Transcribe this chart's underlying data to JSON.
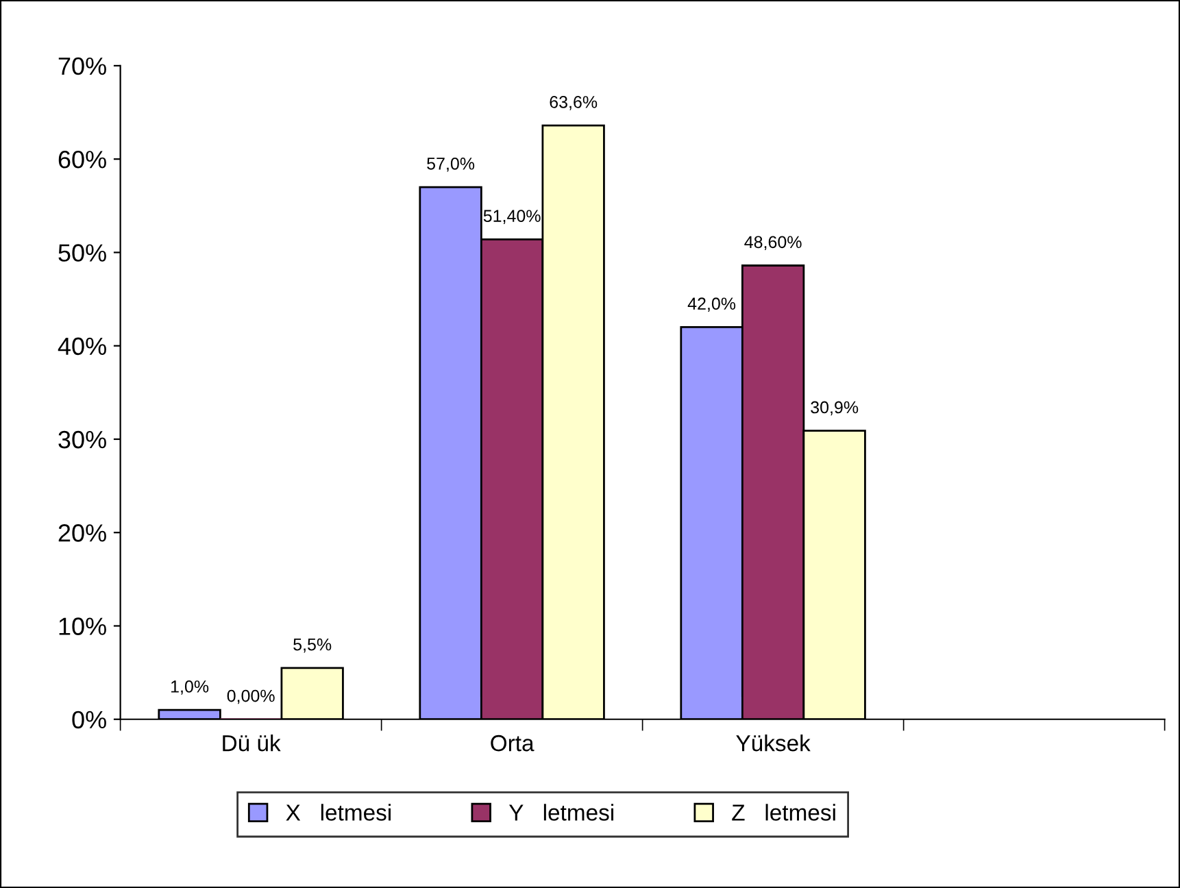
{
  "chart_data": {
    "type": "bar",
    "categories": [
      "Dü ük",
      "Orta",
      "Yüksek",
      null
    ],
    "series": [
      {
        "name": "X   letmesi",
        "color": "#9999ff",
        "values": [
          1.0,
          57.0,
          42.0,
          null
        ],
        "value_labels": [
          "1,0%",
          "57,0%",
          "42,0%",
          null
        ]
      },
      {
        "name": "Y   letmesi",
        "color": "#993366",
        "values": [
          0.0,
          51.4,
          48.6,
          null
        ],
        "value_labels": [
          "0,00%",
          "51,40%",
          "48,60%",
          null
        ]
      },
      {
        "name": "Z   letmesi",
        "color": "#ffffcc",
        "values": [
          5.5,
          63.6,
          30.9,
          null
        ],
        "value_labels": [
          "5,5%",
          "63,6%",
          "30,9%",
          null
        ]
      }
    ],
    "ylim": [
      0,
      70
    ],
    "yticks": [
      {
        "value": 0,
        "label": "0%"
      },
      {
        "value": 10,
        "label": "10%"
      },
      {
        "value": 20,
        "label": "20%"
      },
      {
        "value": 30,
        "label": "30%"
      },
      {
        "value": 40,
        "label": "40%"
      },
      {
        "value": 50,
        "label": "50%"
      },
      {
        "value": 60,
        "label": "60%"
      },
      {
        "value": 70,
        "label": "70%"
      }
    ],
    "grid": false,
    "legend": "bottom"
  }
}
